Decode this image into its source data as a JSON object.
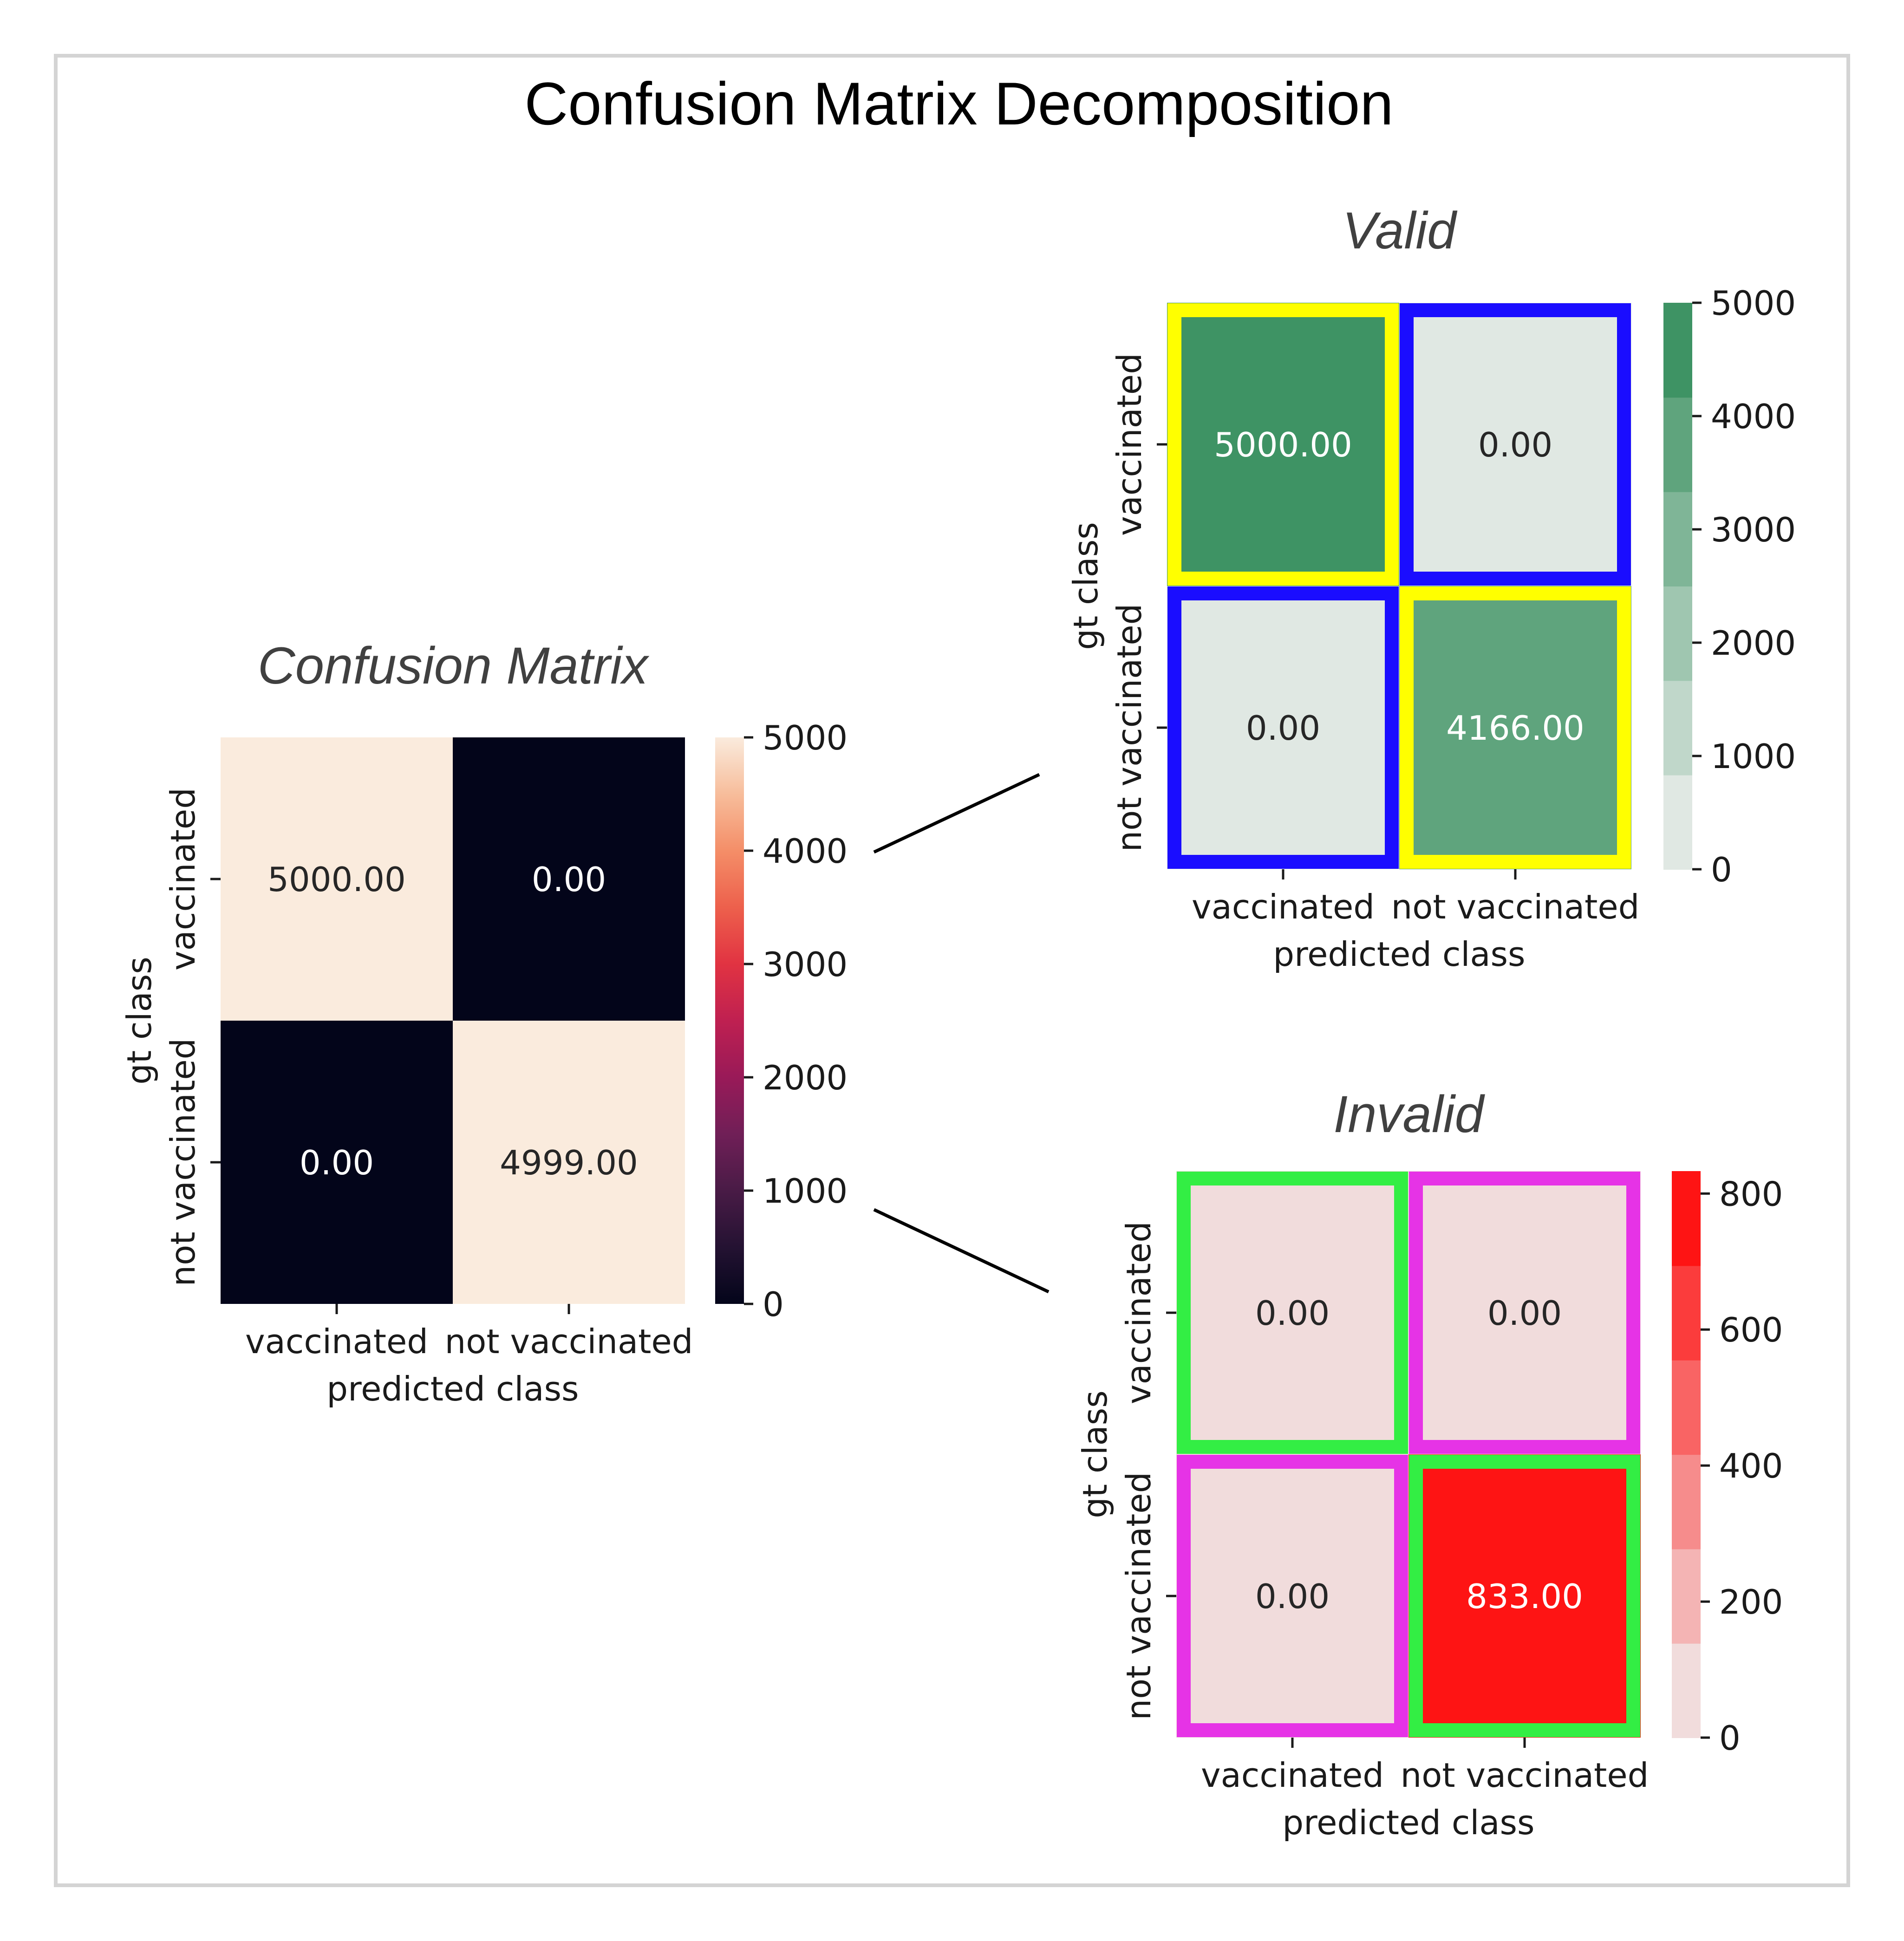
{
  "figure_title": "Confusion Matrix Decomposition",
  "colors": {
    "frame": "#d4d4d4",
    "tick_text": "#1a1a1a",
    "subtitle": "#404040",
    "cm_low": "#03051a",
    "cm_high": "#faebdd",
    "valid_base": "#2e8b57",
    "invalid_base": "#ff0000",
    "light_gray": "#f0f0f0",
    "highlight_yellow": "#ffff00",
    "highlight_blue": "#1a0dff",
    "highlight_green": "#33ee44",
    "highlight_magenta": "#e633e6"
  },
  "chart_data": [
    {
      "type": "heatmap",
      "id": "cm",
      "title": "Confusion Matrix",
      "xlabel": "predicted class",
      "ylabel": "gt class",
      "x_categories": [
        "vaccinated",
        "not vaccinated"
      ],
      "y_categories": [
        "vaccinated",
        "not vaccinated"
      ],
      "values": [
        [
          5000,
          0
        ],
        [
          0,
          4999
        ]
      ],
      "cell_labels": [
        [
          "5000.00",
          "0.00"
        ],
        [
          "0.00",
          "4999.00"
        ]
      ],
      "colormap": "rocket",
      "colorbar": {
        "range": [
          0,
          5000
        ],
        "ticks": [
          0,
          1000,
          2000,
          3000,
          4000,
          5000
        ],
        "tick_labels": [
          "0",
          "1000",
          "2000",
          "3000",
          "4000",
          "5000"
        ]
      }
    },
    {
      "type": "heatmap",
      "id": "valid",
      "title": "Valid",
      "xlabel": "predicted class",
      "ylabel": "gt class",
      "x_categories": [
        "vaccinated",
        "not vaccinated"
      ],
      "y_categories": [
        "vaccinated",
        "not vaccinated"
      ],
      "values": [
        [
          5000,
          0
        ],
        [
          0,
          4166
        ]
      ],
      "cell_labels": [
        [
          "5000.00",
          "0.00"
        ],
        [
          "0.00",
          "4166.00"
        ]
      ],
      "colormap": "discrete greens (6 levels)",
      "highlights": [
        [
          "yellow",
          "blue"
        ],
        [
          "blue",
          "yellow"
        ]
      ],
      "colorbar": {
        "range": [
          0,
          5000
        ],
        "ticks": [
          0,
          1000,
          2000,
          3000,
          4000,
          5000
        ],
        "tick_labels": [
          "0",
          "1000",
          "2000",
          "3000",
          "4000",
          "5000"
        ]
      }
    },
    {
      "type": "heatmap",
      "id": "invalid",
      "title": "Invalid",
      "xlabel": "predicted class",
      "ylabel": "gt class",
      "x_categories": [
        "vaccinated",
        "not vaccinated"
      ],
      "y_categories": [
        "vaccinated",
        "not vaccinated"
      ],
      "values": [
        [
          0,
          0
        ],
        [
          0,
          833
        ]
      ],
      "cell_labels": [
        [
          "0.00",
          "0.00"
        ],
        [
          "0.00",
          "833.00"
        ]
      ],
      "colormap": "discrete reds (6 levels)",
      "highlights": [
        [
          "green",
          "magenta"
        ],
        [
          "magenta",
          "green"
        ]
      ],
      "colorbar": {
        "range": [
          0,
          833
        ],
        "ticks": [
          0,
          200,
          400,
          600,
          800
        ],
        "tick_labels": [
          "0",
          "200",
          "400",
          "600",
          "800"
        ]
      }
    }
  ]
}
